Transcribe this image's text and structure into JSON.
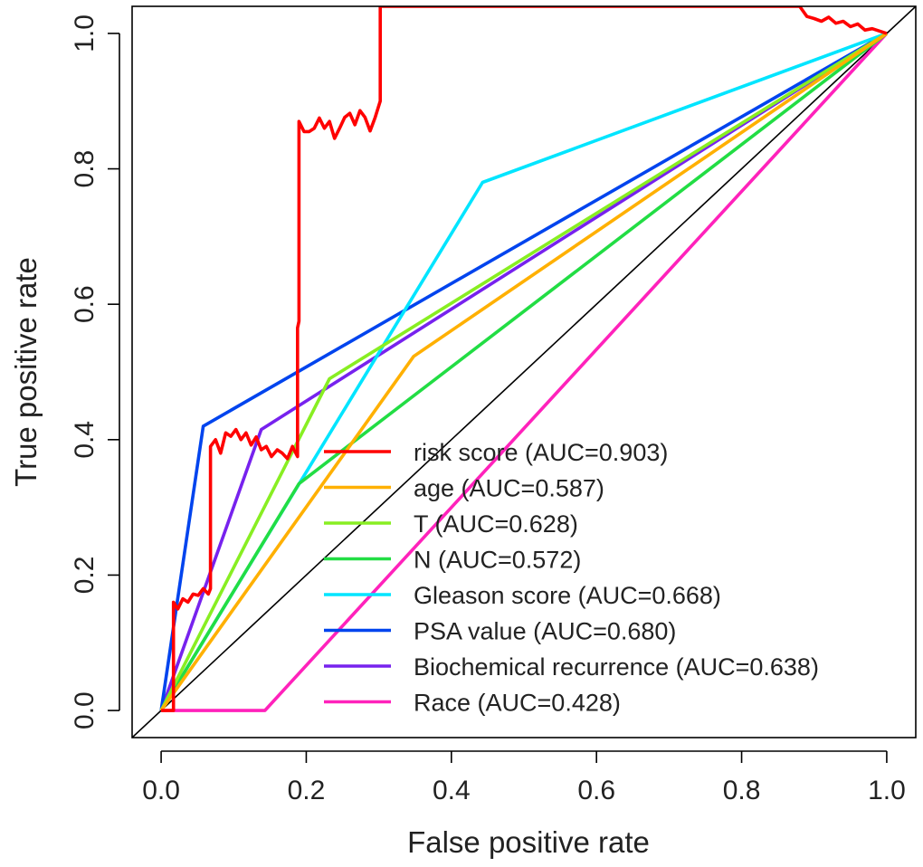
{
  "chart_data": {
    "type": "line",
    "title": "",
    "xlabel": "False positive rate",
    "ylabel": "True positive rate",
    "xlim": [
      -0.04,
      1.04
    ],
    "ylim": [
      -0.04,
      1.04
    ],
    "xticks": [
      0.0,
      0.2,
      0.4,
      0.6,
      0.8,
      1.0
    ],
    "yticks": [
      0.0,
      0.2,
      0.4,
      0.6,
      0.8,
      1.0
    ],
    "xtick_labels": [
      "0.0",
      "0.2",
      "0.4",
      "0.6",
      "0.8",
      "1.0"
    ],
    "ytick_labels": [
      "0.0",
      "0.2",
      "0.4",
      "0.6",
      "0.8",
      "1.0"
    ],
    "grid": false,
    "legend_position": "bottom-right",
    "reference_line": {
      "x": [
        0,
        1
      ],
      "y": [
        0,
        1
      ],
      "color": "#000000"
    },
    "series": [
      {
        "name": "risk score (AUC=0.903)",
        "color": "#ff0000",
        "x": [
          0.0,
          0.017,
          0.017,
          0.023,
          0.03,
          0.037,
          0.044,
          0.051,
          0.058,
          0.065,
          0.068,
          0.068,
          0.075,
          0.082,
          0.089,
          0.096,
          0.103,
          0.11,
          0.117,
          0.124,
          0.131,
          0.138,
          0.145,
          0.152,
          0.16,
          0.167,
          0.174,
          0.181,
          0.188,
          0.188,
          0.19,
          0.19,
          0.197,
          0.204,
          0.211,
          0.218,
          0.225,
          0.232,
          0.239,
          0.246,
          0.253,
          0.26,
          0.267,
          0.274,
          0.281,
          0.288,
          0.295,
          0.302,
          0.302,
          0.302,
          0.88,
          0.89,
          0.9,
          0.91,
          0.92,
          0.93,
          0.94,
          0.95,
          0.96,
          0.97,
          0.98,
          1.0
        ],
        "y": [
          0.0,
          0.0,
          0.16,
          0.15,
          0.165,
          0.16,
          0.172,
          0.17,
          0.18,
          0.172,
          0.18,
          0.39,
          0.4,
          0.38,
          0.41,
          0.405,
          0.415,
          0.4,
          0.41,
          0.392,
          0.404,
          0.385,
          0.39,
          0.375,
          0.385,
          0.38,
          0.372,
          0.39,
          0.375,
          0.565,
          0.575,
          0.87,
          0.855,
          0.855,
          0.86,
          0.875,
          0.86,
          0.87,
          0.845,
          0.86,
          0.876,
          0.882,
          0.865,
          0.886,
          0.876,
          0.856,
          0.876,
          0.9,
          0.9,
          1.04,
          1.04,
          1.025,
          1.022,
          1.018,
          1.024,
          1.015,
          1.018,
          1.01,
          1.014,
          1.005,
          1.007,
          1.0
        ]
      },
      {
        "name": "age (AUC=0.587)",
        "color": "#ffb000",
        "x": [
          0.0,
          0.348,
          1.0
        ],
        "y": [
          0.0,
          0.523,
          1.0
        ]
      },
      {
        "name": "T (AUC=0.628)",
        "color": "#88ee22",
        "x": [
          0.0,
          0.232,
          1.0
        ],
        "y": [
          0.0,
          0.49,
          1.0
        ]
      },
      {
        "name": "N (AUC=0.572)",
        "color": "#22dd44",
        "x": [
          0.0,
          0.19,
          1.0
        ],
        "y": [
          0.0,
          0.335,
          1.0
        ]
      },
      {
        "name": "Gleason score (AUC=0.668)",
        "color": "#00e5ff",
        "x": [
          0.0,
          0.443,
          1.0
        ],
        "y": [
          0.0,
          0.78,
          1.0
        ]
      },
      {
        "name": "PSA value (AUC=0.680)",
        "color": "#0044ee",
        "x": [
          0.0,
          0.058,
          1.0
        ],
        "y": [
          0.0,
          0.42,
          1.0
        ]
      },
      {
        "name": "Biochemical recurrence (AUC=0.638)",
        "color": "#7722ee",
        "x": [
          0.0,
          0.138,
          1.0
        ],
        "y": [
          0.0,
          0.415,
          1.0
        ]
      },
      {
        "name": "Race (AUC=0.428)",
        "color": "#ff22bb",
        "x": [
          0.0,
          0.143,
          1.0
        ],
        "y": [
          0.0,
          0.0,
          1.0
        ]
      }
    ]
  }
}
